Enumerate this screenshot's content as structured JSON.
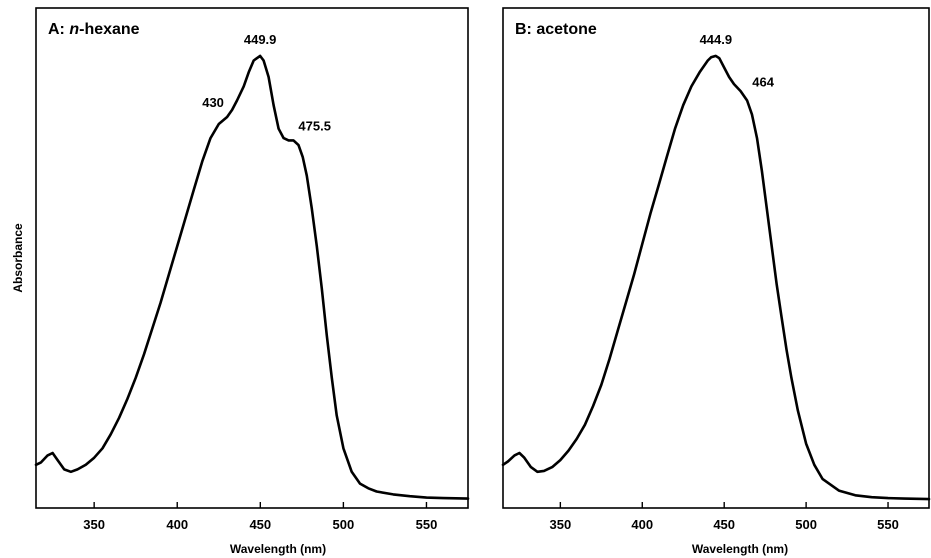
{
  "y_axis_label": "Absorbance",
  "chart_data": [
    {
      "type": "line",
      "panel_title_prefix": "A: ",
      "panel_title_italic": "n",
      "panel_title_suffix": "-hexane",
      "xlabel": "Wavelength (nm)",
      "xlim": [
        315,
        575
      ],
      "ylim": [
        0,
        1.0
      ],
      "xticks": [
        350,
        400,
        450,
        500,
        550
      ],
      "grid": false,
      "series": [
        {
          "x": [
            315,
            318,
            322,
            325,
            328,
            332,
            336,
            340,
            345,
            350,
            355,
            360,
            365,
            370,
            375,
            380,
            385,
            390,
            395,
            400,
            405,
            410,
            415,
            420,
            425,
            430,
            433,
            436,
            440,
            443,
            446,
            449.9,
            452,
            455,
            458,
            461,
            464,
            467,
            470,
            473,
            475.5,
            478,
            481,
            484,
            487,
            490,
            493,
            496,
            500,
            505,
            510,
            515,
            520,
            530,
            540,
            550,
            560,
            575
          ],
          "y": [
            0.075,
            0.08,
            0.095,
            0.1,
            0.085,
            0.065,
            0.06,
            0.065,
            0.075,
            0.09,
            0.11,
            0.14,
            0.175,
            0.215,
            0.26,
            0.31,
            0.365,
            0.42,
            0.48,
            0.54,
            0.6,
            0.66,
            0.72,
            0.77,
            0.8,
            0.815,
            0.83,
            0.85,
            0.88,
            0.91,
            0.935,
            0.945,
            0.935,
            0.9,
            0.84,
            0.79,
            0.77,
            0.765,
            0.765,
            0.755,
            0.73,
            0.69,
            0.62,
            0.54,
            0.45,
            0.35,
            0.26,
            0.18,
            0.11,
            0.06,
            0.035,
            0.025,
            0.018,
            0.012,
            0.008,
            0.005,
            0.004,
            0.003
          ]
        }
      ],
      "annotations": [
        {
          "label": "430",
          "x": 430,
          "y": 0.815
        },
        {
          "label": "449.9",
          "x": 449.9,
          "y": 0.945
        },
        {
          "label": "475.5",
          "x": 475.5,
          "y": 0.765
        }
      ]
    },
    {
      "type": "line",
      "panel_title_prefix": "B: ",
      "panel_title_italic": "",
      "panel_title_suffix": "acetone",
      "xlabel": "Wavelength (nm)",
      "xlim": [
        315,
        575
      ],
      "ylim": [
        0,
        1.0
      ],
      "xticks": [
        350,
        400,
        450,
        500,
        550
      ],
      "grid": false,
      "series": [
        {
          "x": [
            315,
            318,
            322,
            325,
            328,
            332,
            336,
            340,
            345,
            350,
            355,
            360,
            365,
            370,
            375,
            380,
            385,
            390,
            395,
            400,
            405,
            410,
            415,
            420,
            425,
            430,
            435,
            440,
            442,
            444.9,
            447,
            450,
            453,
            456,
            460,
            464,
            467,
            470,
            473,
            476,
            479,
            482,
            485,
            488,
            491,
            495,
            500,
            505,
            510,
            520,
            530,
            540,
            550,
            560,
            575
          ],
          "y": [
            0.075,
            0.082,
            0.095,
            0.1,
            0.09,
            0.07,
            0.06,
            0.062,
            0.07,
            0.085,
            0.105,
            0.13,
            0.16,
            0.2,
            0.245,
            0.3,
            0.36,
            0.42,
            0.48,
            0.545,
            0.61,
            0.67,
            0.73,
            0.79,
            0.84,
            0.88,
            0.91,
            0.935,
            0.942,
            0.945,
            0.94,
            0.92,
            0.9,
            0.885,
            0.87,
            0.85,
            0.82,
            0.77,
            0.7,
            0.62,
            0.54,
            0.46,
            0.39,
            0.32,
            0.26,
            0.19,
            0.12,
            0.075,
            0.045,
            0.02,
            0.01,
            0.006,
            0.004,
            0.003,
            0.002
          ]
        }
      ],
      "annotations": [
        {
          "label": "444.9",
          "x": 444.9,
          "y": 0.945
        },
        {
          "label": "464",
          "x": 464,
          "y": 0.85
        }
      ]
    }
  ]
}
